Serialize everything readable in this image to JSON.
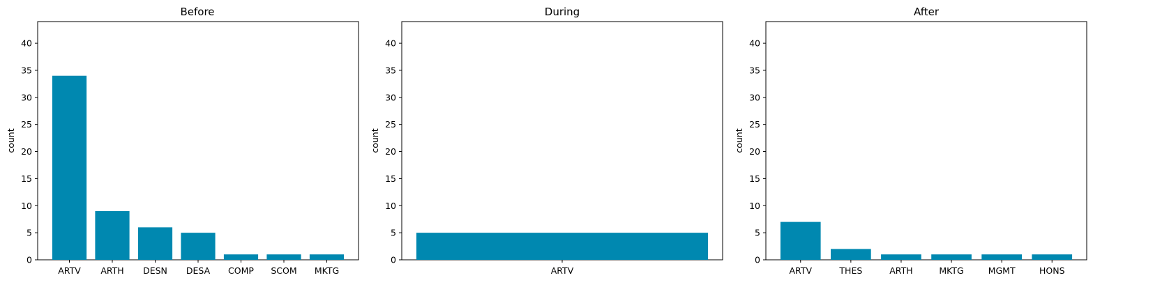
{
  "chart_data": [
    {
      "type": "bar",
      "title": "Before",
      "ylabel": "count",
      "xlabel": "",
      "ylim": [
        0,
        44
      ],
      "yticks": [
        0,
        5,
        10,
        15,
        20,
        25,
        30,
        35,
        40
      ],
      "bar_color": "#0088b0",
      "categories": [
        "ARTV",
        "ARTH",
        "DESN",
        "DESA",
        "COMP",
        "SCOM",
        "MKTG"
      ],
      "values": [
        34,
        9,
        6,
        5,
        1,
        1,
        1
      ],
      "grid": false
    },
    {
      "type": "bar",
      "title": "During",
      "ylabel": "count",
      "xlabel": "",
      "ylim": [
        0,
        44
      ],
      "yticks": [
        0,
        5,
        10,
        15,
        20,
        25,
        30,
        35,
        40
      ],
      "bar_color": "#0088b0",
      "categories": [
        "ARTV"
      ],
      "values": [
        5
      ],
      "grid": false
    },
    {
      "type": "bar",
      "title": "After",
      "ylabel": "count",
      "xlabel": "",
      "ylim": [
        0,
        44
      ],
      "yticks": [
        0,
        5,
        10,
        15,
        20,
        25,
        30,
        35,
        40
      ],
      "bar_color": "#0088b0",
      "categories": [
        "ARTV",
        "THES",
        "ARTH",
        "MKTG",
        "MGMT",
        "HONS"
      ],
      "values": [
        7,
        2,
        1,
        1,
        1,
        1
      ],
      "grid": false
    }
  ]
}
